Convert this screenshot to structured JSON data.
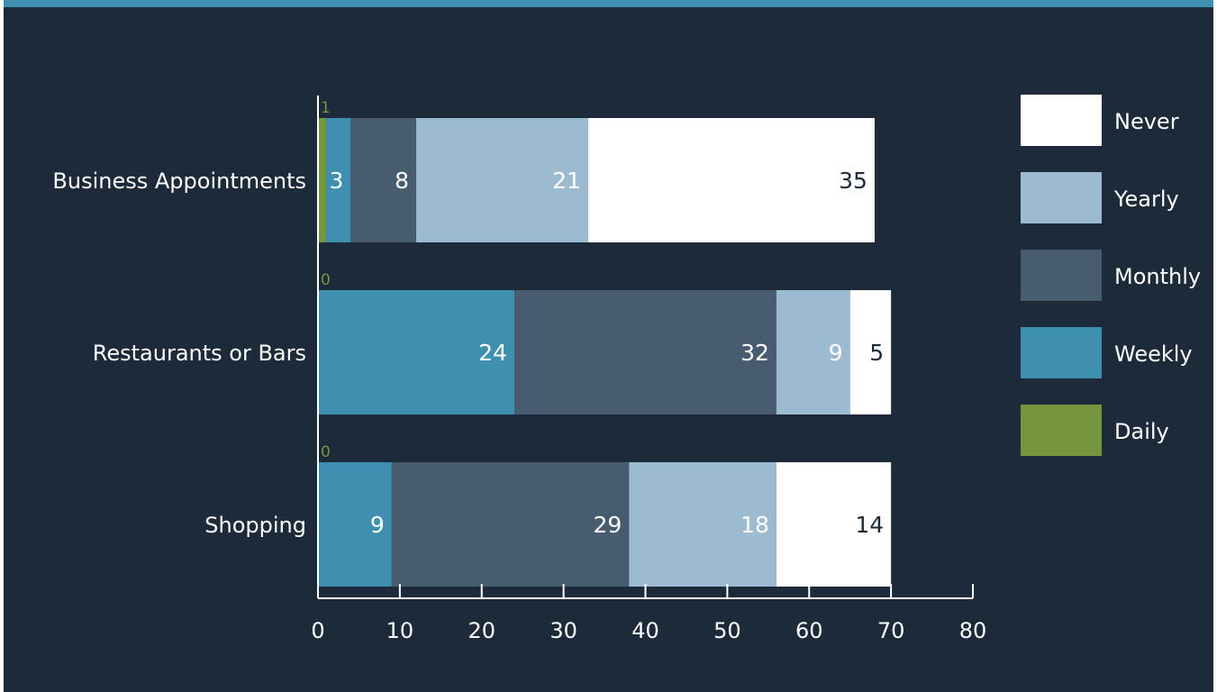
{
  "chart_data": {
    "type": "bar",
    "orientation": "horizontal",
    "stacked": true,
    "categories": [
      "Business Appointments",
      "Restaurants or Bars",
      "Shopping"
    ],
    "series": [
      {
        "name": "Daily",
        "color": "#76963d",
        "values": [
          1,
          0,
          0
        ]
      },
      {
        "name": "Weekly",
        "color": "#3e8fb0",
        "values": [
          3,
          24,
          9
        ]
      },
      {
        "name": "Monthly",
        "color": "#485c70",
        "values": [
          8,
          32,
          29
        ]
      },
      {
        "name": "Yearly",
        "color": "#9dbbd0",
        "values": [
          21,
          9,
          18
        ]
      },
      {
        "name": "Never",
        "color": "#ffffff",
        "values": [
          35,
          5,
          14
        ]
      }
    ],
    "legend_order": [
      "Never",
      "Yearly",
      "Monthly",
      "Weekly",
      "Daily"
    ],
    "xlim": [
      0,
      80
    ],
    "xticks": [
      0,
      10,
      20,
      30,
      40,
      50,
      60,
      70,
      80
    ],
    "legend_position": "right",
    "grid": false,
    "title": "",
    "xlabel": "",
    "ylabel": ""
  }
}
